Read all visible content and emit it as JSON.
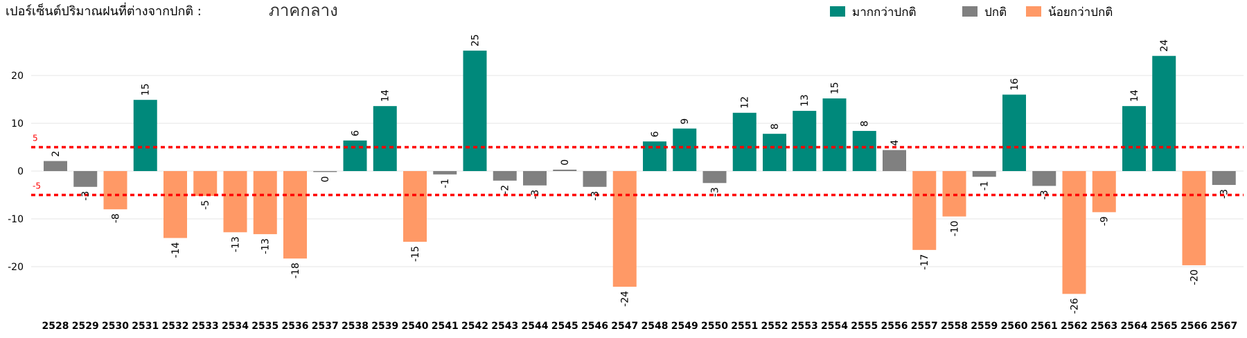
{
  "chart_data": {
    "type": "bar",
    "title": "เปอร์เซ็นต์ปริมาณฝนที่ต่างจากปกติ :",
    "subtitle": "ภาคกลาง",
    "xlabel": "",
    "ylabel": "",
    "ylim": [
      -29,
      31
    ],
    "yticks": [
      -20,
      -10,
      0,
      10,
      20
    ],
    "grid": true,
    "legend_position": "top-right",
    "legend": [
      {
        "label": "มากกว่าปกติ",
        "color": "#00897B"
      },
      {
        "label": "ปกติ",
        "color": "#808080"
      },
      {
        "label": "น้อยกว่าปกติ",
        "color": "#FF9966"
      }
    ],
    "thresholds": [
      {
        "value": 5,
        "label": "5",
        "color": "#FF0000"
      },
      {
        "value": -5,
        "label": "-5",
        "color": "#FF0000"
      }
    ],
    "categories": [
      "2528",
      "2529",
      "2530",
      "2531",
      "2532",
      "2533",
      "2534",
      "2535",
      "2536",
      "2537",
      "2538",
      "2539",
      "2540",
      "2541",
      "2542",
      "2543",
      "2544",
      "2545",
      "2546",
      "2547",
      "2548",
      "2549",
      "2550",
      "2551",
      "2552",
      "2553",
      "2554",
      "2555",
      "2556",
      "2557",
      "2558",
      "2559",
      "2560",
      "2561",
      "2562",
      "2563",
      "2564",
      "2565",
      "2566",
      "2567"
    ],
    "values": [
      2.1,
      -3.3,
      -8.0,
      14.9,
      -14.0,
      -5.2,
      -12.8,
      -13.2,
      -18.3,
      -0.2,
      6.4,
      13.6,
      -14.8,
      -0.7,
      25.2,
      -2.0,
      -3.0,
      0.3,
      -3.3,
      -24.2,
      6.2,
      8.9,
      -2.5,
      12.2,
      7.8,
      12.6,
      15.2,
      8.4,
      4.4,
      -16.5,
      -9.5,
      -1.2,
      16.0,
      -3.1,
      -25.7,
      -8.6,
      13.6,
      24.1,
      -19.7,
      -2.9
    ],
    "labels": [
      "2",
      "-3",
      "-8",
      "15",
      "-14",
      "-5",
      "-13",
      "-13",
      "-18",
      "0",
      "6",
      "14",
      "-15",
      "-1",
      "25",
      "-2",
      "-3",
      "0",
      "-3",
      "-24",
      "6",
      "9",
      "-3",
      "12",
      "8",
      "13",
      "15",
      "8",
      "4",
      "-17",
      "-10",
      "-1",
      "16",
      "-3",
      "-26",
      "-9",
      "14",
      "24",
      "-20",
      "-3"
    ],
    "colors": {
      "above": "#00897B",
      "normal": "#808080",
      "below": "#FF9966",
      "grid": "#E6E6E6"
    }
  }
}
